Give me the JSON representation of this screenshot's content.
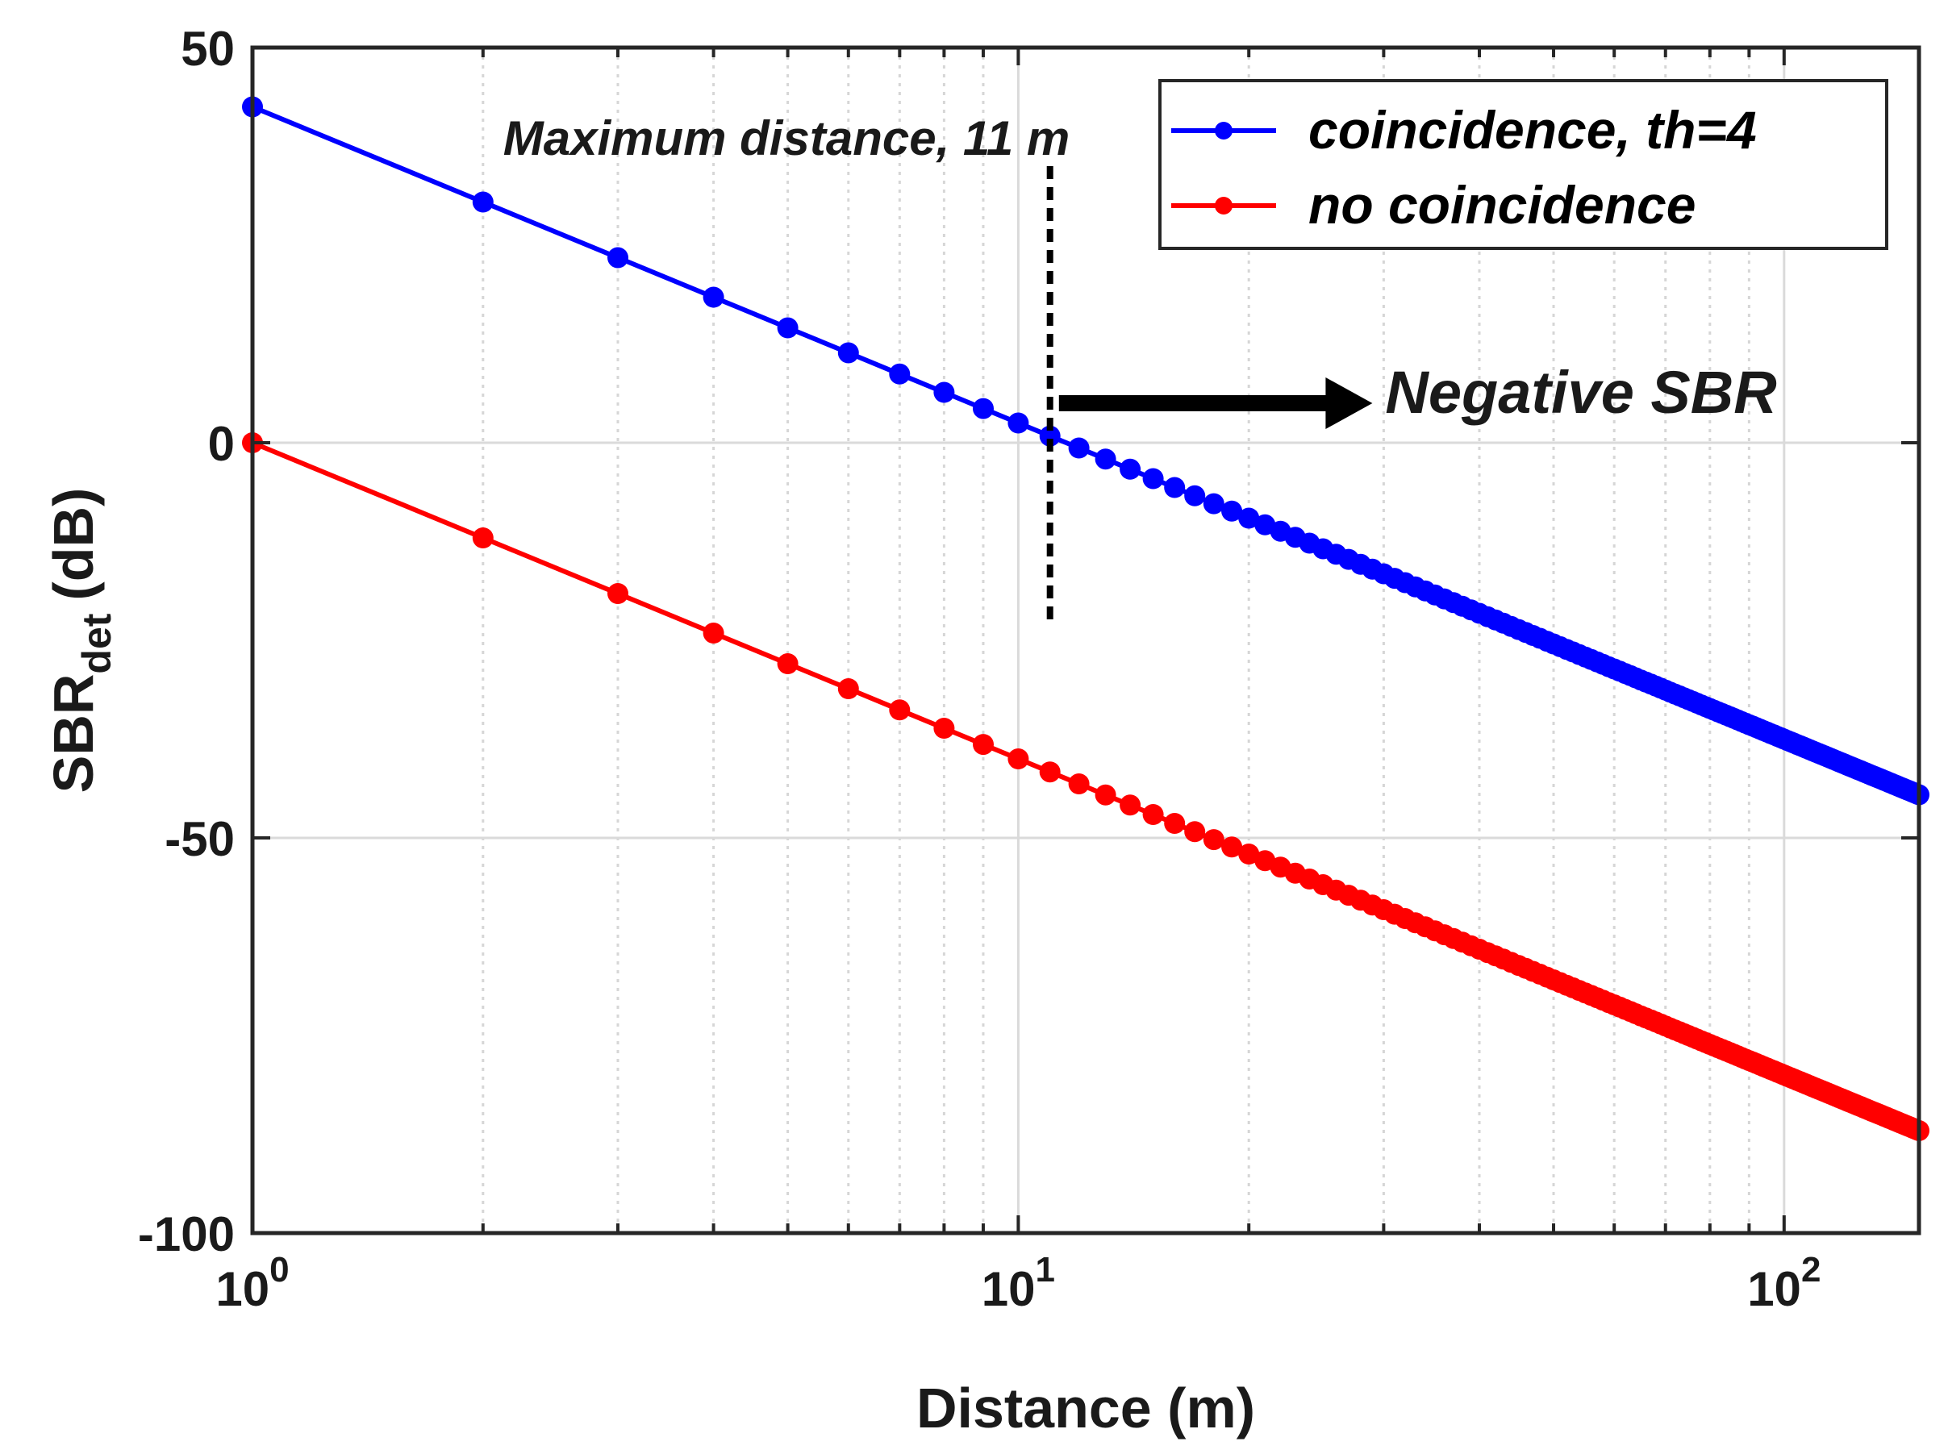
{
  "chart_data": {
    "type": "line",
    "xscale": "log",
    "xlim": [
      1,
      150
    ],
    "ylim": [
      -100,
      50
    ],
    "xlabel": "Distance (m)",
    "ylabel": {
      "main": "SBR",
      "sub": "det",
      "unit": "(dB)"
    },
    "x_ticks": [
      {
        "value": 1,
        "base": "10",
        "exp": "0"
      },
      {
        "value": 10,
        "base": "10",
        "exp": "1"
      },
      {
        "value": 100,
        "base": "10",
        "exp": "2"
      }
    ],
    "y_ticks": [
      {
        "value": 50,
        "label": "50"
      },
      {
        "value": 0,
        "label": "0"
      },
      {
        "value": -50,
        "label": "-50"
      },
      {
        "value": -100,
        "label": "-100"
      }
    ],
    "grid": true,
    "series": [
      {
        "name": "coincidence, th=4",
        "color": "#0000ff",
        "x_start": 1,
        "x_end": 150,
        "x_step": 1,
        "y_at_1m": 42.5,
        "slope_db_per_decade": -40
      },
      {
        "name": "no coincidence",
        "color": "#ff0000",
        "x_start": 1,
        "x_end": 150,
        "x_step": 1,
        "y_at_1m": 0,
        "slope_db_per_decade": -40
      }
    ],
    "legend_position": "top-right",
    "annotations": {
      "max_distance": {
        "text": "Maximum distance, 11 m",
        "x": 11,
        "y_top": 35,
        "y_bottom": -22.5
      },
      "negative_sbr": {
        "text": "Negative SBR",
        "arrow_from_x": 11.3,
        "arrow_to_x": 29,
        "y": 5
      }
    }
  }
}
